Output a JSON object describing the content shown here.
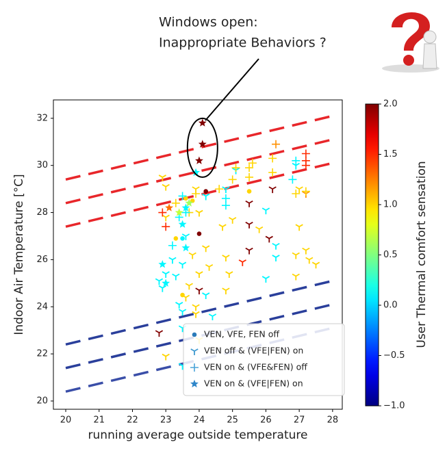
{
  "chart_data": {
    "type": "scatter",
    "xlabel": "running average outside temperature",
    "ylabel": "Indoor Air Temperature [°C]",
    "xlim": [
      19.63,
      28.29
    ],
    "ylim": [
      19.65,
      32.78
    ],
    "xticks": [
      20,
      21,
      22,
      23,
      24,
      25,
      26,
      27,
      28
    ],
    "yticks": [
      20,
      22,
      24,
      26,
      28,
      30,
      32
    ],
    "annotation": [
      "Windows open:",
      "Inappropriate Behaviors ?"
    ],
    "colorbar": {
      "label": "User Thermal comfort sensation",
      "lim": [
        -1,
        2
      ],
      "colormap": "jet",
      "ticks": [
        {
          "value": 2,
          "label": "2.0"
        },
        {
          "value": 1.5,
          "label": "1.5"
        },
        {
          "value": 1,
          "label": "1.0"
        },
        {
          "value": 0.5,
          "label": "0.5"
        },
        {
          "value": 0,
          "label": "0.0"
        },
        {
          "value": -0.5,
          "label": "−0.5"
        },
        {
          "value": -1,
          "label": "−1.0"
        }
      ]
    },
    "lines": [
      {
        "x": [
          20,
          28
        ],
        "y": [
          29.4,
          32.1
        ],
        "color": "#e8262a"
      },
      {
        "x": [
          20,
          28
        ],
        "y": [
          28.4,
          31.1
        ],
        "color": "#e8262a"
      },
      {
        "x": [
          20,
          28
        ],
        "y": [
          27.4,
          30.1
        ],
        "color": "#e8262a"
      },
      {
        "x": [
          20,
          28
        ],
        "y": [
          22.4,
          25.1
        ],
        "color": "#2a3f9b"
      },
      {
        "x": [
          20,
          28
        ],
        "y": [
          21.4,
          24.1
        ],
        "color": "#2a3f9b"
      },
      {
        "x": [
          20,
          28
        ],
        "y": [
          20.4,
          23.1
        ],
        "color": "#3a4ea8"
      }
    ],
    "legend": "lower right",
    "series": [
      {
        "name": "VEN, VFE, FEN off",
        "marker": "o",
        "legend_color": "#2b7bb9",
        "x": [
          24.2,
          24.0,
          25.5,
          23.3,
          23.5,
          23.8,
          23.6,
          23.5
        ],
        "y": [
          28.9,
          27.1,
          28.9,
          26.9,
          26.9,
          28.5,
          28.6,
          24.5
        ],
        "c": [
          2,
          2,
          1.0,
          1.0,
          0.1,
          1.0,
          1.0,
          1.0
        ]
      },
      {
        "name": "VEN off & (VFE|FEN) on",
        "marker": "1",
        "legend_color": "#3f9bd0",
        "x": [
          26.2,
          25.5,
          25.5,
          26.1,
          25.5,
          25.3,
          26.0,
          26.3,
          26.3,
          26.0,
          25.1,
          24.2,
          24.8,
          24.7,
          24.8,
          24.9,
          24.8,
          24.4,
          24.3,
          24.2,
          24.0,
          24.2,
          24.0,
          23.9,
          23.7,
          23.6,
          23.5,
          23.5,
          23.4,
          23.3,
          23.2,
          23.0,
          22.9,
          22.8,
          23.0,
          23.0,
          22.9,
          23.0,
          23.8,
          23.6,
          23.5,
          23.9,
          23.5,
          24.0,
          22.8,
          27.0,
          27.2,
          27.2,
          27.3,
          26.9,
          26.9,
          27.0,
          27.5,
          25.8,
          25.0,
          26.9,
          24.0,
          23.9
        ],
        "y": [
          29.0,
          28.4,
          27.5,
          26.9,
          26.4,
          25.9,
          28.1,
          26.6,
          26.1,
          25.2,
          29.8,
          28.7,
          29.0,
          27.4,
          26.1,
          25.4,
          24.7,
          23.6,
          25.7,
          26.5,
          25.4,
          24.5,
          24.7,
          24.0,
          24.9,
          24.4,
          23.8,
          23.1,
          24.1,
          25.3,
          26.0,
          25.4,
          24.8,
          25.1,
          27.8,
          29.1,
          29.5,
          21.9,
          26.2,
          27.0,
          25.8,
          23.7,
          21.5,
          22.6,
          22.9,
          29.0,
          28.8,
          26.4,
          26.0,
          26.2,
          25.3,
          27.4,
          25.8,
          27.3,
          27.7,
          30.0,
          28.0,
          29.0
        ],
        "c": [
          2,
          2,
          2,
          2,
          2,
          1.5,
          0.1,
          0.1,
          0.1,
          0.1,
          0.1,
          0.1,
          0.1,
          1.0,
          1.0,
          1.0,
          1.0,
          0.1,
          1.0,
          1.0,
          1.0,
          0.1,
          2,
          1.0,
          1.0,
          1.0,
          0.1,
          0.1,
          0.1,
          0.1,
          0.1,
          0.1,
          0.1,
          0.1,
          1.0,
          1.0,
          1.0,
          1.0,
          1.0,
          0.1,
          0.1,
          1.0,
          0.1,
          1.0,
          2,
          1.0,
          1.2,
          1.0,
          1.0,
          1.0,
          1.0,
          1.0,
          1.0,
          1.0,
          1.0,
          0.1,
          1.0,
          1.0
        ]
      },
      {
        "name": "VEN on & (VFE&FEN) off",
        "marker": "+",
        "legend_color": "#4aa3d8",
        "x": [
          22.9,
          23.0,
          27.2,
          27.2,
          27.2,
          26.9,
          26.8,
          26.3,
          26.2,
          26.2,
          25.5,
          25.5,
          25.6,
          25.1,
          25.0,
          24.8,
          24.8,
          23.5,
          23.3,
          23.7,
          23.9,
          23.6,
          23.4,
          26.9,
          27.2,
          24.6,
          23.2
        ],
        "y": [
          28.0,
          27.4,
          30.5,
          30.2,
          30.0,
          30.2,
          29.4,
          30.9,
          30.3,
          29.7,
          29.9,
          29.5,
          30.1,
          29.9,
          29.4,
          28.6,
          28.3,
          28.7,
          28.4,
          28.0,
          28.8,
          28.0,
          27.8,
          28.8,
          28.9,
          29.0,
          26.6
        ],
        "c": [
          1.5,
          1.5,
          1.5,
          1.5,
          1.5,
          0.1,
          0.1,
          1.2,
          1.0,
          1.0,
          1.0,
          1.0,
          1.0,
          1.0,
          1.0,
          0.1,
          0.1,
          0.1,
          1.0,
          1.0,
          1.0,
          0.1,
          0.1,
          1.0,
          1.0,
          1.0,
          0.1
        ]
      },
      {
        "name": "VEN on & (VFE|FEN) on",
        "marker": "*",
        "legend_color": "#2e86c9",
        "x": [
          24.1,
          24.1,
          24.0,
          23.9,
          23.6,
          23.5,
          23.4,
          23.7,
          22.9,
          23.0,
          23.6,
          23.1
        ],
        "y": [
          31.8,
          30.9,
          30.2,
          29.7,
          28.2,
          27.5,
          28.0,
          28.4,
          25.8,
          25.0,
          26.5,
          28.2
        ],
        "c": [
          2,
          2,
          2,
          0.1,
          0.1,
          0.1,
          0.7,
          0.6,
          0.1,
          0.1,
          0.1,
          1.3
        ]
      }
    ]
  }
}
